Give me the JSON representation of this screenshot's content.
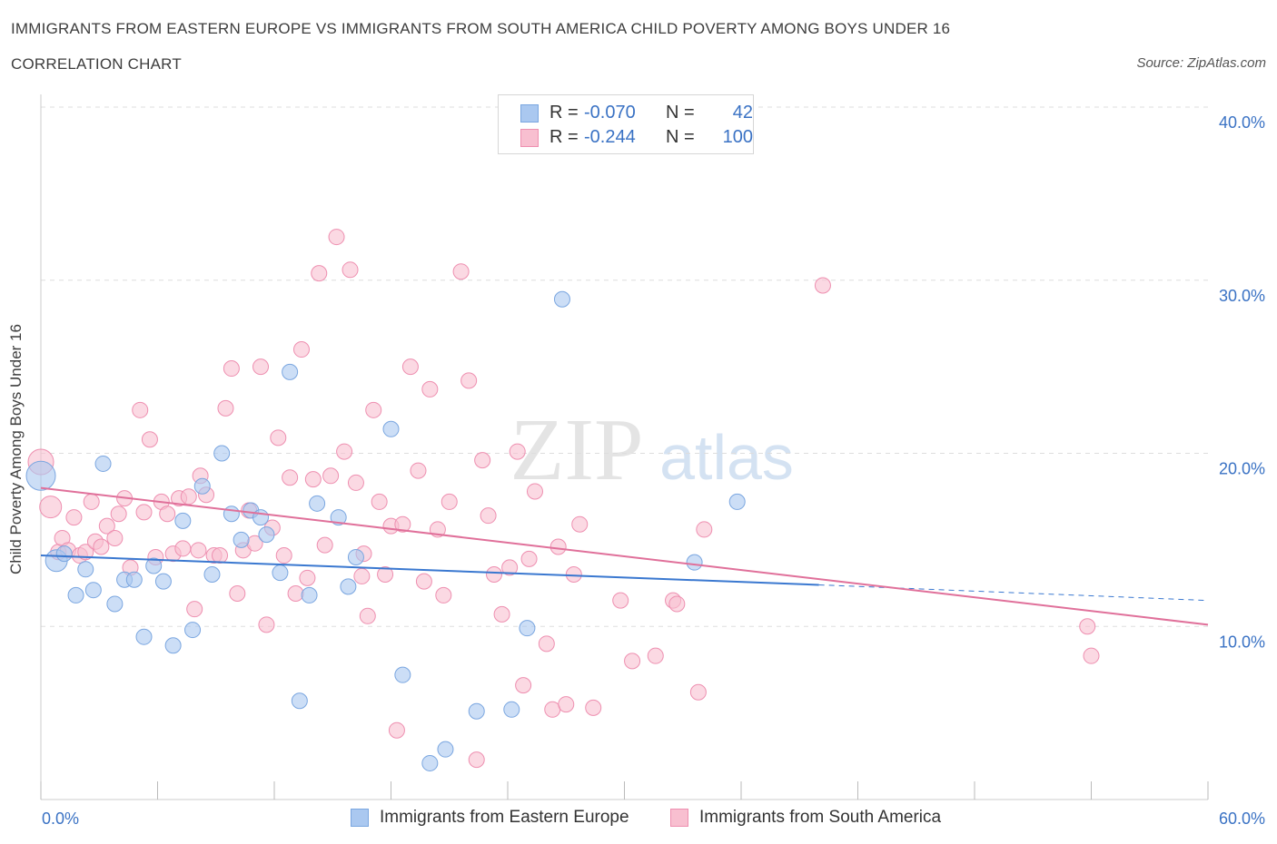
{
  "title": "IMMIGRANTS FROM EASTERN EUROPE VS IMMIGRANTS FROM SOUTH AMERICA CHILD POVERTY AMONG BOYS UNDER 16",
  "subtitle": "CORRELATION CHART",
  "source": "Source: ZipAtlas.com",
  "watermark": {
    "zip": "ZIP",
    "atlas": "atlas"
  },
  "colors": {
    "blue_fill": "#aac8f0",
    "blue_stroke": "#7aa6e0",
    "blue_line": "#3a78d0",
    "pink_fill": "#f8bfd0",
    "pink_stroke": "#ee8fb0",
    "pink_line": "#e0709a",
    "axis_text": "#3a72c4",
    "grid": "#dddddd"
  },
  "stats": [
    {
      "r_label": "R =",
      "r_value": "-0.070",
      "n_label": "N =",
      "n_value": "42"
    },
    {
      "r_label": "R =",
      "r_value": "-0.244",
      "n_label": "N =",
      "n_value": "100"
    }
  ],
  "chart_data": {
    "type": "scatter",
    "title": "IMMIGRANTS FROM EASTERN EUROPE VS IMMIGRANTS FROM SOUTH AMERICA CHILD POVERTY AMONG BOYS UNDER 16",
    "subtitle": "CORRELATION CHART",
    "xlabel": "",
    "ylabel": "Child Poverty Among Boys Under 16",
    "xlim": [
      0,
      60
    ],
    "ylim": [
      0,
      40
    ],
    "x_tick_labels": [
      "0.0%",
      "60.0%"
    ],
    "y_ticks": [
      10,
      20,
      30,
      40
    ],
    "y_tick_labels": [
      "10.0%",
      "20.0%",
      "30.0%",
      "40.0%"
    ],
    "grid": "horizontal dashed",
    "legend": "bottom-center",
    "series": [
      {
        "name": "Immigrants from Eastern Europe",
        "color": "#aac8f0",
        "trend": {
          "x": [
            0,
            40
          ],
          "y": [
            14.1,
            12.4
          ],
          "dashed_extension_to": [
            60,
            11.5
          ]
        },
        "points": [
          [
            0.0,
            18.7
          ],
          [
            0.8,
            13.8
          ],
          [
            1.2,
            14.2
          ],
          [
            1.8,
            11.8
          ],
          [
            2.3,
            13.3
          ],
          [
            2.7,
            12.1
          ],
          [
            3.2,
            19.4
          ],
          [
            3.8,
            11.3
          ],
          [
            4.3,
            12.7
          ],
          [
            4.8,
            12.7
          ],
          [
            5.3,
            9.4
          ],
          [
            5.8,
            13.5
          ],
          [
            6.3,
            12.6
          ],
          [
            6.8,
            8.9
          ],
          [
            7.3,
            16.1
          ],
          [
            7.8,
            9.8
          ],
          [
            8.3,
            18.1
          ],
          [
            8.8,
            13.0
          ],
          [
            9.3,
            20.0
          ],
          [
            9.8,
            16.5
          ],
          [
            10.3,
            15.0
          ],
          [
            10.8,
            16.7
          ],
          [
            11.3,
            16.3
          ],
          [
            11.6,
            15.3
          ],
          [
            12.3,
            13.1
          ],
          [
            12.8,
            24.7
          ],
          [
            13.3,
            5.7
          ],
          [
            13.8,
            11.8
          ],
          [
            14.2,
            17.1
          ],
          [
            15.3,
            16.3
          ],
          [
            15.8,
            12.3
          ],
          [
            16.2,
            14.0
          ],
          [
            18.0,
            21.4
          ],
          [
            18.6,
            7.2
          ],
          [
            20.0,
            2.1
          ],
          [
            20.8,
            2.9
          ],
          [
            22.4,
            5.1
          ],
          [
            24.2,
            5.2
          ],
          [
            25.0,
            9.9
          ],
          [
            26.8,
            28.9
          ],
          [
            33.6,
            13.7
          ],
          [
            35.8,
            17.2
          ]
        ]
      },
      {
        "name": "Immigrants from South America",
        "color": "#f8bfd0",
        "trend": {
          "x": [
            0,
            60
          ],
          "y": [
            18.0,
            10.1
          ]
        },
        "points": [
          [
            0.0,
            19.5
          ],
          [
            0.5,
            16.9
          ],
          [
            0.9,
            14.3
          ],
          [
            1.1,
            15.1
          ],
          [
            1.4,
            14.4
          ],
          [
            1.7,
            16.3
          ],
          [
            2.0,
            14.1
          ],
          [
            2.3,
            14.3
          ],
          [
            2.6,
            17.2
          ],
          [
            2.8,
            14.9
          ],
          [
            3.1,
            14.6
          ],
          [
            3.4,
            15.8
          ],
          [
            3.8,
            15.1
          ],
          [
            4.0,
            16.5
          ],
          [
            4.3,
            17.4
          ],
          [
            4.6,
            13.4
          ],
          [
            5.1,
            22.5
          ],
          [
            5.3,
            16.6
          ],
          [
            5.6,
            20.8
          ],
          [
            5.9,
            14.0
          ],
          [
            6.2,
            17.2
          ],
          [
            6.5,
            16.5
          ],
          [
            6.8,
            14.2
          ],
          [
            7.1,
            17.4
          ],
          [
            7.3,
            14.5
          ],
          [
            7.6,
            17.5
          ],
          [
            7.9,
            11.0
          ],
          [
            8.2,
            18.7
          ],
          [
            8.5,
            17.6
          ],
          [
            8.9,
            14.1
          ],
          [
            9.2,
            14.1
          ],
          [
            9.5,
            22.6
          ],
          [
            9.8,
            24.9
          ],
          [
            10.1,
            11.9
          ],
          [
            10.4,
            14.4
          ],
          [
            10.7,
            16.7
          ],
          [
            11.0,
            14.8
          ],
          [
            11.3,
            25.0
          ],
          [
            11.6,
            10.1
          ],
          [
            11.9,
            15.7
          ],
          [
            12.2,
            20.9
          ],
          [
            12.5,
            14.1
          ],
          [
            12.8,
            18.6
          ],
          [
            13.1,
            11.9
          ],
          [
            13.4,
            26.0
          ],
          [
            13.7,
            12.8
          ],
          [
            14.0,
            18.5
          ],
          [
            14.3,
            30.4
          ],
          [
            14.6,
            14.7
          ],
          [
            14.9,
            18.7
          ],
          [
            15.2,
            32.5
          ],
          [
            15.6,
            20.1
          ],
          [
            15.9,
            30.6
          ],
          [
            16.2,
            18.3
          ],
          [
            16.5,
            12.9
          ],
          [
            16.8,
            10.6
          ],
          [
            17.1,
            22.5
          ],
          [
            17.4,
            17.2
          ],
          [
            17.7,
            13.0
          ],
          [
            18.0,
            15.8
          ],
          [
            18.3,
            4.0
          ],
          [
            18.6,
            15.9
          ],
          [
            19.0,
            25.0
          ],
          [
            19.4,
            19.0
          ],
          [
            19.7,
            12.6
          ],
          [
            20.0,
            23.7
          ],
          [
            20.4,
            15.6
          ],
          [
            20.7,
            11.8
          ],
          [
            21.0,
            17.2
          ],
          [
            21.6,
            30.5
          ],
          [
            22.0,
            24.2
          ],
          [
            22.4,
            2.3
          ],
          [
            22.7,
            19.6
          ],
          [
            23.0,
            16.4
          ],
          [
            23.3,
            13.0
          ],
          [
            23.7,
            10.7
          ],
          [
            24.1,
            13.4
          ],
          [
            24.5,
            20.1
          ],
          [
            24.8,
            6.6
          ],
          [
            25.1,
            13.9
          ],
          [
            25.4,
            17.8
          ],
          [
            26.0,
            9.0
          ],
          [
            26.3,
            5.2
          ],
          [
            26.6,
            14.6
          ],
          [
            27.0,
            5.5
          ],
          [
            27.4,
            13.0
          ],
          [
            27.7,
            15.9
          ],
          [
            28.4,
            5.3
          ],
          [
            29.8,
            11.5
          ],
          [
            30.4,
            8.0
          ],
          [
            31.6,
            8.3
          ],
          [
            32.5,
            11.5
          ],
          [
            32.7,
            11.3
          ],
          [
            33.8,
            6.2
          ],
          [
            34.1,
            15.6
          ],
          [
            40.2,
            29.7
          ],
          [
            53.8,
            10.0
          ],
          [
            54.0,
            8.3
          ],
          [
            16.6,
            14.2
          ],
          [
            8.1,
            14.4
          ]
        ]
      }
    ]
  },
  "legend": [
    {
      "label": "Immigrants from Eastern Europe"
    },
    {
      "label": "Immigrants from South America"
    }
  ]
}
